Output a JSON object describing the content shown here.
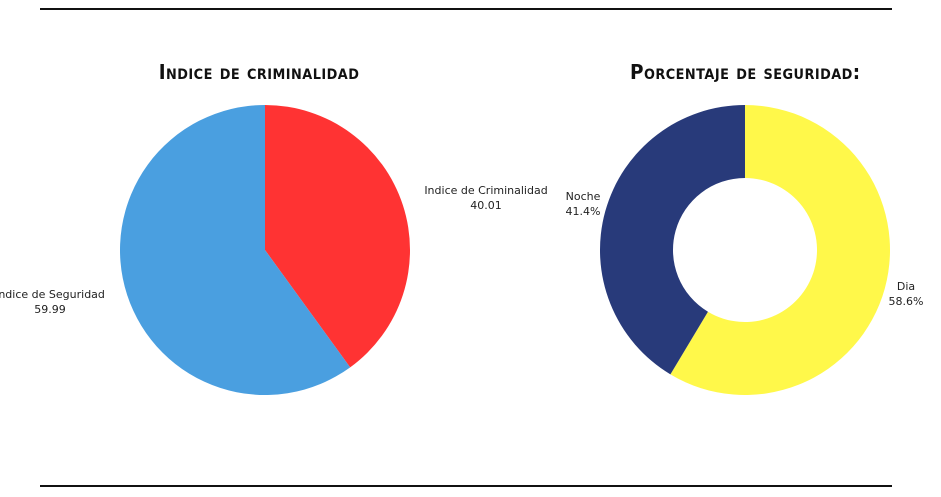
{
  "chart_data": [
    {
      "type": "pie",
      "title": "Indice de criminalidad",
      "slices": [
        {
          "label": "Indice de Criminalidad",
          "value": 40.01,
          "value_text": "40.01",
          "color": "#ff3333"
        },
        {
          "label": "Indice de Seguridad",
          "value": 59.99,
          "value_text": "59.99",
          "color": "#4a9fe0"
        }
      ]
    },
    {
      "type": "pie",
      "donut": true,
      "title": "Porcentaje de seguridad:",
      "slices": [
        {
          "label": "Dia",
          "value": 58.6,
          "value_text": "58.6%",
          "color": "#fff84a"
        },
        {
          "label": "Noche",
          "value": 41.4,
          "value_text": "41.4%",
          "color": "#283a7a"
        }
      ]
    }
  ]
}
